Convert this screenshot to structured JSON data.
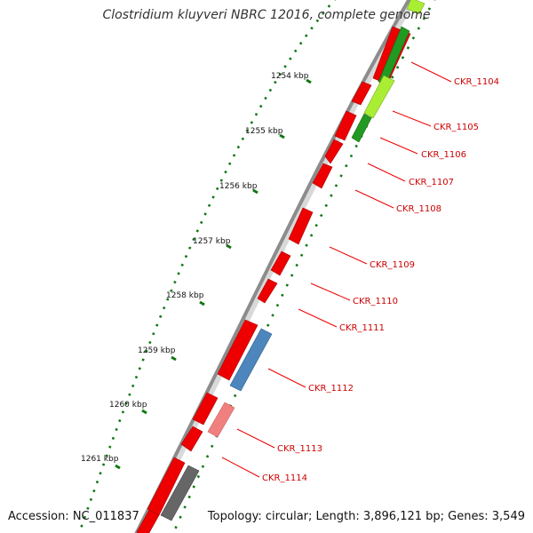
{
  "title": "Clostridium kluyveri NBRC 12016, complete genome",
  "accession": "Accession: NC_011837",
  "summary": "Topology: circular; Length: 3,896,121 bp; Genes: 3,549",
  "colors": {
    "backbone": "#8c8c8c",
    "cds": "#ee0000",
    "gene_label": "#cc0000",
    "callout": "#ee0000",
    "tick": "#117711",
    "dark_green": "#229922",
    "light_green": "#aaee33",
    "blue": "#4d86bd",
    "pink": "#f08080",
    "gray": "#666666"
  },
  "scale_labels": [
    "1254 kbp",
    "1255 kbp",
    "1256 kbp",
    "1257 kbp",
    "1258 kbp",
    "1259 kbp",
    "1260 kbp",
    "1261 kbp"
  ],
  "genes": [
    {
      "label": "CKR_1104",
      "color": "dark_green"
    },
    {
      "label": "CKR_1105",
      "color": "light_green"
    },
    {
      "label": "CKR_1106",
      "color": "dark_green"
    },
    {
      "label": "CKR_1107",
      "color": "red"
    },
    {
      "label": "CKR_1108",
      "color": "red"
    },
    {
      "label": "CKR_1109",
      "color": "red"
    },
    {
      "label": "CKR_1110",
      "color": "red"
    },
    {
      "label": "CKR_1111",
      "color": "red"
    },
    {
      "label": "CKR_1112",
      "color": "blue"
    },
    {
      "label": "CKR_1113",
      "color": "pink"
    },
    {
      "label": "CKR_1114",
      "color": "gray"
    }
  ]
}
